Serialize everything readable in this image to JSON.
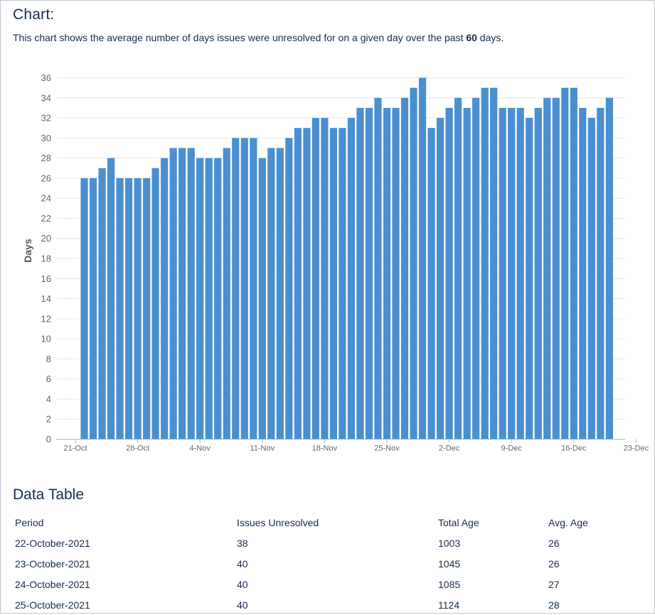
{
  "page": {
    "chart_heading": "Chart:",
    "description_prefix": "This chart shows the average number of days issues were unresolved for on a given day over the past ",
    "description_days": "60",
    "description_suffix": " days.",
    "table_heading": "Data Table"
  },
  "chart_data": {
    "type": "bar",
    "title": "",
    "xlabel": "",
    "ylabel": "Days",
    "ylim": [
      0,
      36
    ],
    "yticks": [
      0,
      2,
      4,
      6,
      8,
      10,
      12,
      14,
      16,
      18,
      20,
      22,
      24,
      26,
      28,
      30,
      32,
      34,
      36
    ],
    "x_start_day": 21,
    "x_range_days": [
      21,
      84
    ],
    "x_tick_labels": [
      {
        "label": "21-Oct",
        "day": 21
      },
      {
        "label": "28-Oct",
        "day": 28
      },
      {
        "label": "4-Nov",
        "day": 35
      },
      {
        "label": "11-Nov",
        "day": 42
      },
      {
        "label": "18-Nov",
        "day": 49
      },
      {
        "label": "25-Nov",
        "day": 56
      },
      {
        "label": "2-Dec",
        "day": 63
      },
      {
        "label": "9-Dec",
        "day": 70
      },
      {
        "label": "16-Dec",
        "day": 77
      },
      {
        "label": "23-Dec",
        "day": 84
      }
    ],
    "first_bar_day": 22,
    "values": [
      26,
      26,
      27,
      28,
      26,
      26,
      26,
      26,
      27,
      28,
      29,
      29,
      29,
      28,
      28,
      28,
      29,
      30,
      30,
      30,
      28,
      29,
      29,
      30,
      31,
      31,
      32,
      32,
      31,
      31,
      32,
      33,
      33,
      34,
      33,
      33,
      34,
      35,
      36,
      31,
      32,
      33,
      34,
      33,
      34,
      35,
      35,
      33,
      33,
      33,
      32,
      33,
      34,
      34,
      35,
      35,
      33,
      32,
      33,
      34
    ],
    "bar_color": "#4a8fcf"
  },
  "table": {
    "headers": [
      "Period",
      "Issues Unresolved",
      "Total Age",
      "Avg. Age"
    ],
    "rows": [
      [
        "22-October-2021",
        "38",
        "1003",
        "26"
      ],
      [
        "23-October-2021",
        "40",
        "1045",
        "26"
      ],
      [
        "24-October-2021",
        "40",
        "1085",
        "27"
      ],
      [
        "25-October-2021",
        "40",
        "1124",
        "28"
      ]
    ]
  }
}
